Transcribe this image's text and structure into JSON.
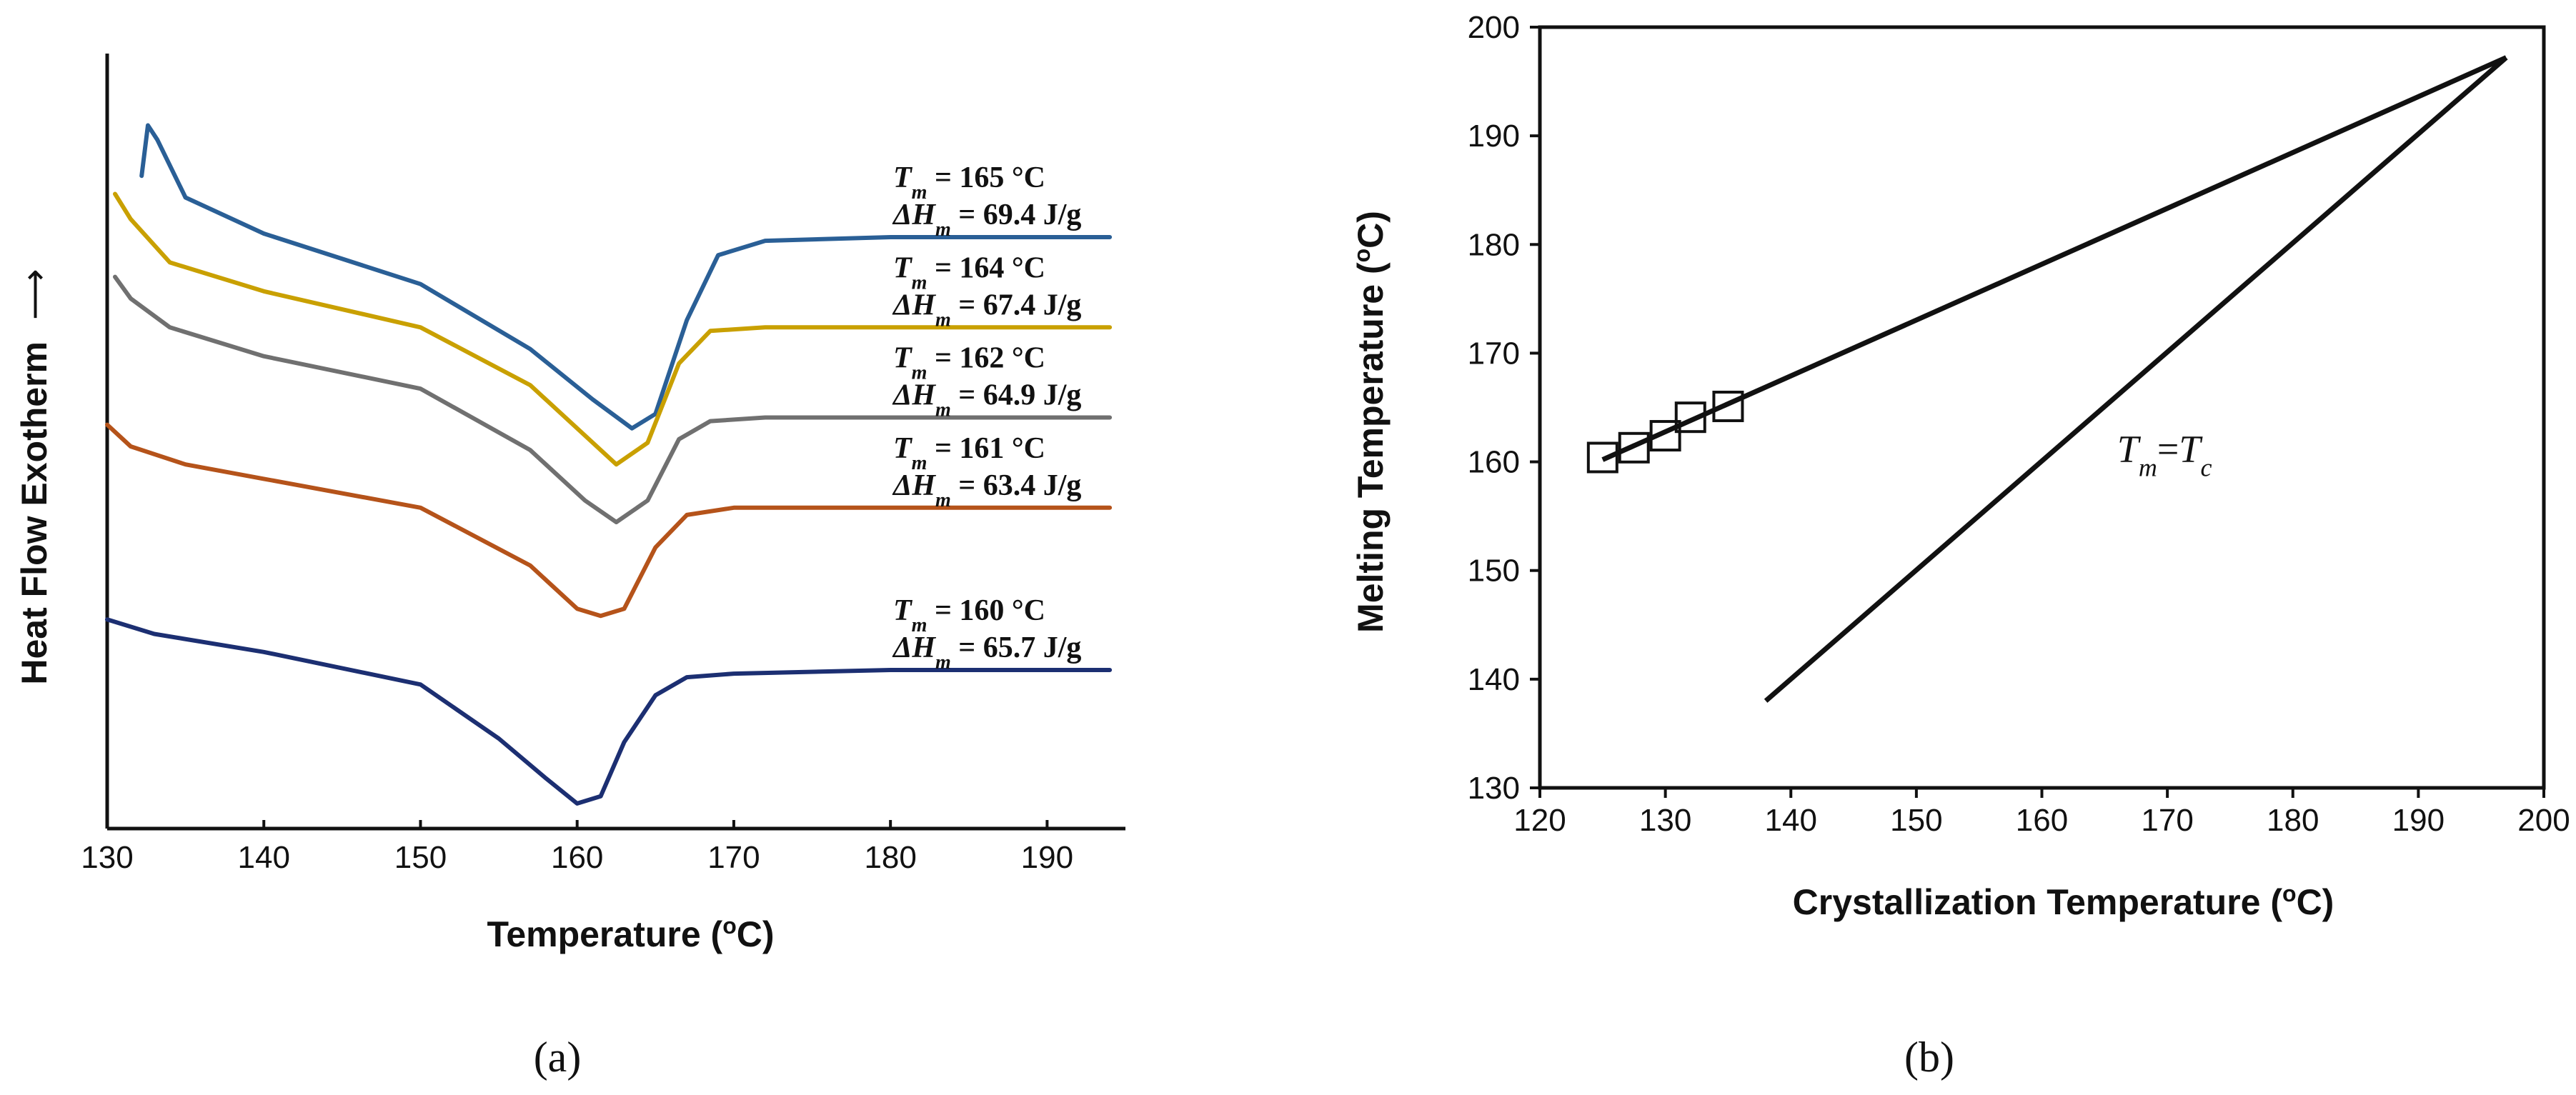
{
  "chart_data": [
    {
      "type": "line",
      "panel_label": "(a)",
      "xlabel_main": "Temperature (",
      "xlabel_sup": "o",
      "xlabel_end": "C)",
      "ylabel": "Heat Flow Exotherm",
      "ylabel_arrow": "⟶",
      "xlim": [
        130,
        195
      ],
      "xticks": [
        "130",
        "140",
        "150",
        "160",
        "170",
        "180",
        "190"
      ],
      "annotation_tm_symbol": "T",
      "annotation_tm_sub": "m",
      "annotation_dh_symbol": "ΔH",
      "annotation_dh_sub": "m",
      "series": [
        {
          "name": "Tm 165",
          "color": "#2a5f96",
          "tm_text": " = 165 °C",
          "dh_text": " = 69.4 J/g",
          "points": [
            [
              132.2,
              0.88
            ],
            [
              132.6,
              0.95
            ],
            [
              133.2,
              0.93
            ],
            [
              135,
              0.85
            ],
            [
              140,
              0.8
            ],
            [
              150,
              0.73
            ],
            [
              157,
              0.64
            ],
            [
              161,
              0.57
            ],
            [
              163.5,
              0.53
            ],
            [
              165,
              0.55
            ],
            [
              167,
              0.68
            ],
            [
              169,
              0.77
            ],
            [
              172,
              0.79
            ],
            [
              180,
              0.795
            ],
            [
              194,
              0.795
            ]
          ]
        },
        {
          "name": "Tm 164",
          "color": "#c9a000",
          "tm_text": " = 164 °C",
          "dh_text": " = 67.4 J/g",
          "points": [
            [
              130.5,
              0.855
            ],
            [
              131.5,
              0.82
            ],
            [
              134,
              0.76
            ],
            [
              140,
              0.72
            ],
            [
              150,
              0.67
            ],
            [
              157,
              0.59
            ],
            [
              160.5,
              0.52
            ],
            [
              162.5,
              0.48
            ],
            [
              164.5,
              0.51
            ],
            [
              166.5,
              0.62
            ],
            [
              168.5,
              0.665
            ],
            [
              172,
              0.67
            ],
            [
              180,
              0.67
            ],
            [
              194,
              0.67
            ]
          ]
        },
        {
          "name": "Tm 162",
          "color": "#707070",
          "tm_text": " = 162 °C",
          "dh_text": " = 64.9 J/g",
          "points": [
            [
              130.5,
              0.74
            ],
            [
              131.5,
              0.71
            ],
            [
              134,
              0.67
            ],
            [
              140,
              0.63
            ],
            [
              150,
              0.585
            ],
            [
              157,
              0.5
            ],
            [
              160.5,
              0.43
            ],
            [
              162.5,
              0.4
            ],
            [
              164.5,
              0.43
            ],
            [
              166.5,
              0.515
            ],
            [
              168.5,
              0.54
            ],
            [
              172,
              0.545
            ],
            [
              180,
              0.545
            ],
            [
              194,
              0.545
            ]
          ]
        },
        {
          "name": "Tm 161",
          "color": "#b5531a",
          "tm_text": " = 161 °C",
          "dh_text": " = 63.4 J/g",
          "points": [
            [
              130,
              0.535
            ],
            [
              131.5,
              0.505
            ],
            [
              135,
              0.48
            ],
            [
              140,
              0.46
            ],
            [
              150,
              0.42
            ],
            [
              157,
              0.34
            ],
            [
              160,
              0.28
            ],
            [
              161.5,
              0.27
            ],
            [
              163,
              0.28
            ],
            [
              165,
              0.365
            ],
            [
              167,
              0.41
            ],
            [
              170,
              0.42
            ],
            [
              180,
              0.42
            ],
            [
              194,
              0.42
            ]
          ]
        },
        {
          "name": "Tm 160",
          "color": "#1c2f72",
          "tm_text": " = 160 °C",
          "dh_text": " = 65.7 J/g",
          "points": [
            [
              130,
              0.265
            ],
            [
              133,
              0.245
            ],
            [
              140,
              0.22
            ],
            [
              150,
              0.175
            ],
            [
              155,
              0.1
            ],
            [
              158,
              0.045
            ],
            [
              160,
              0.01
            ],
            [
              161.5,
              0.02
            ],
            [
              163,
              0.095
            ],
            [
              165,
              0.16
            ],
            [
              167,
              0.185
            ],
            [
              170,
              0.19
            ],
            [
              180,
              0.195
            ],
            [
              194,
              0.195
            ]
          ]
        }
      ]
    },
    {
      "type": "scatter",
      "panel_label": "(b)",
      "xlabel_main": "Crystallization Temperature (",
      "xlabel_sup": "o",
      "xlabel_end": "C)",
      "ylabel_main": "Melting Temperature (",
      "ylabel_sup": "o",
      "ylabel_end": "C)",
      "xlim": [
        120,
        200
      ],
      "ylim": [
        130,
        200
      ],
      "xticks": [
        120,
        130,
        140,
        150,
        160,
        170,
        180,
        190,
        200
      ],
      "yticks": [
        130,
        140,
        150,
        160,
        170,
        180,
        190,
        200
      ],
      "points": [
        [
          125,
          160.4
        ],
        [
          127.5,
          161.3
        ],
        [
          130,
          162.4
        ],
        [
          132,
          164.1
        ],
        [
          135,
          165.1
        ]
      ],
      "fit_line": [
        [
          125,
          160.2
        ],
        [
          197,
          197.2
        ]
      ],
      "tm_tc_line": [
        [
          138,
          138
        ],
        [
          197,
          197.2
        ]
      ],
      "annotation": {
        "t1": "T",
        "s1": "m",
        "eq": "=",
        "t2": "T",
        "s2": "c"
      }
    }
  ]
}
